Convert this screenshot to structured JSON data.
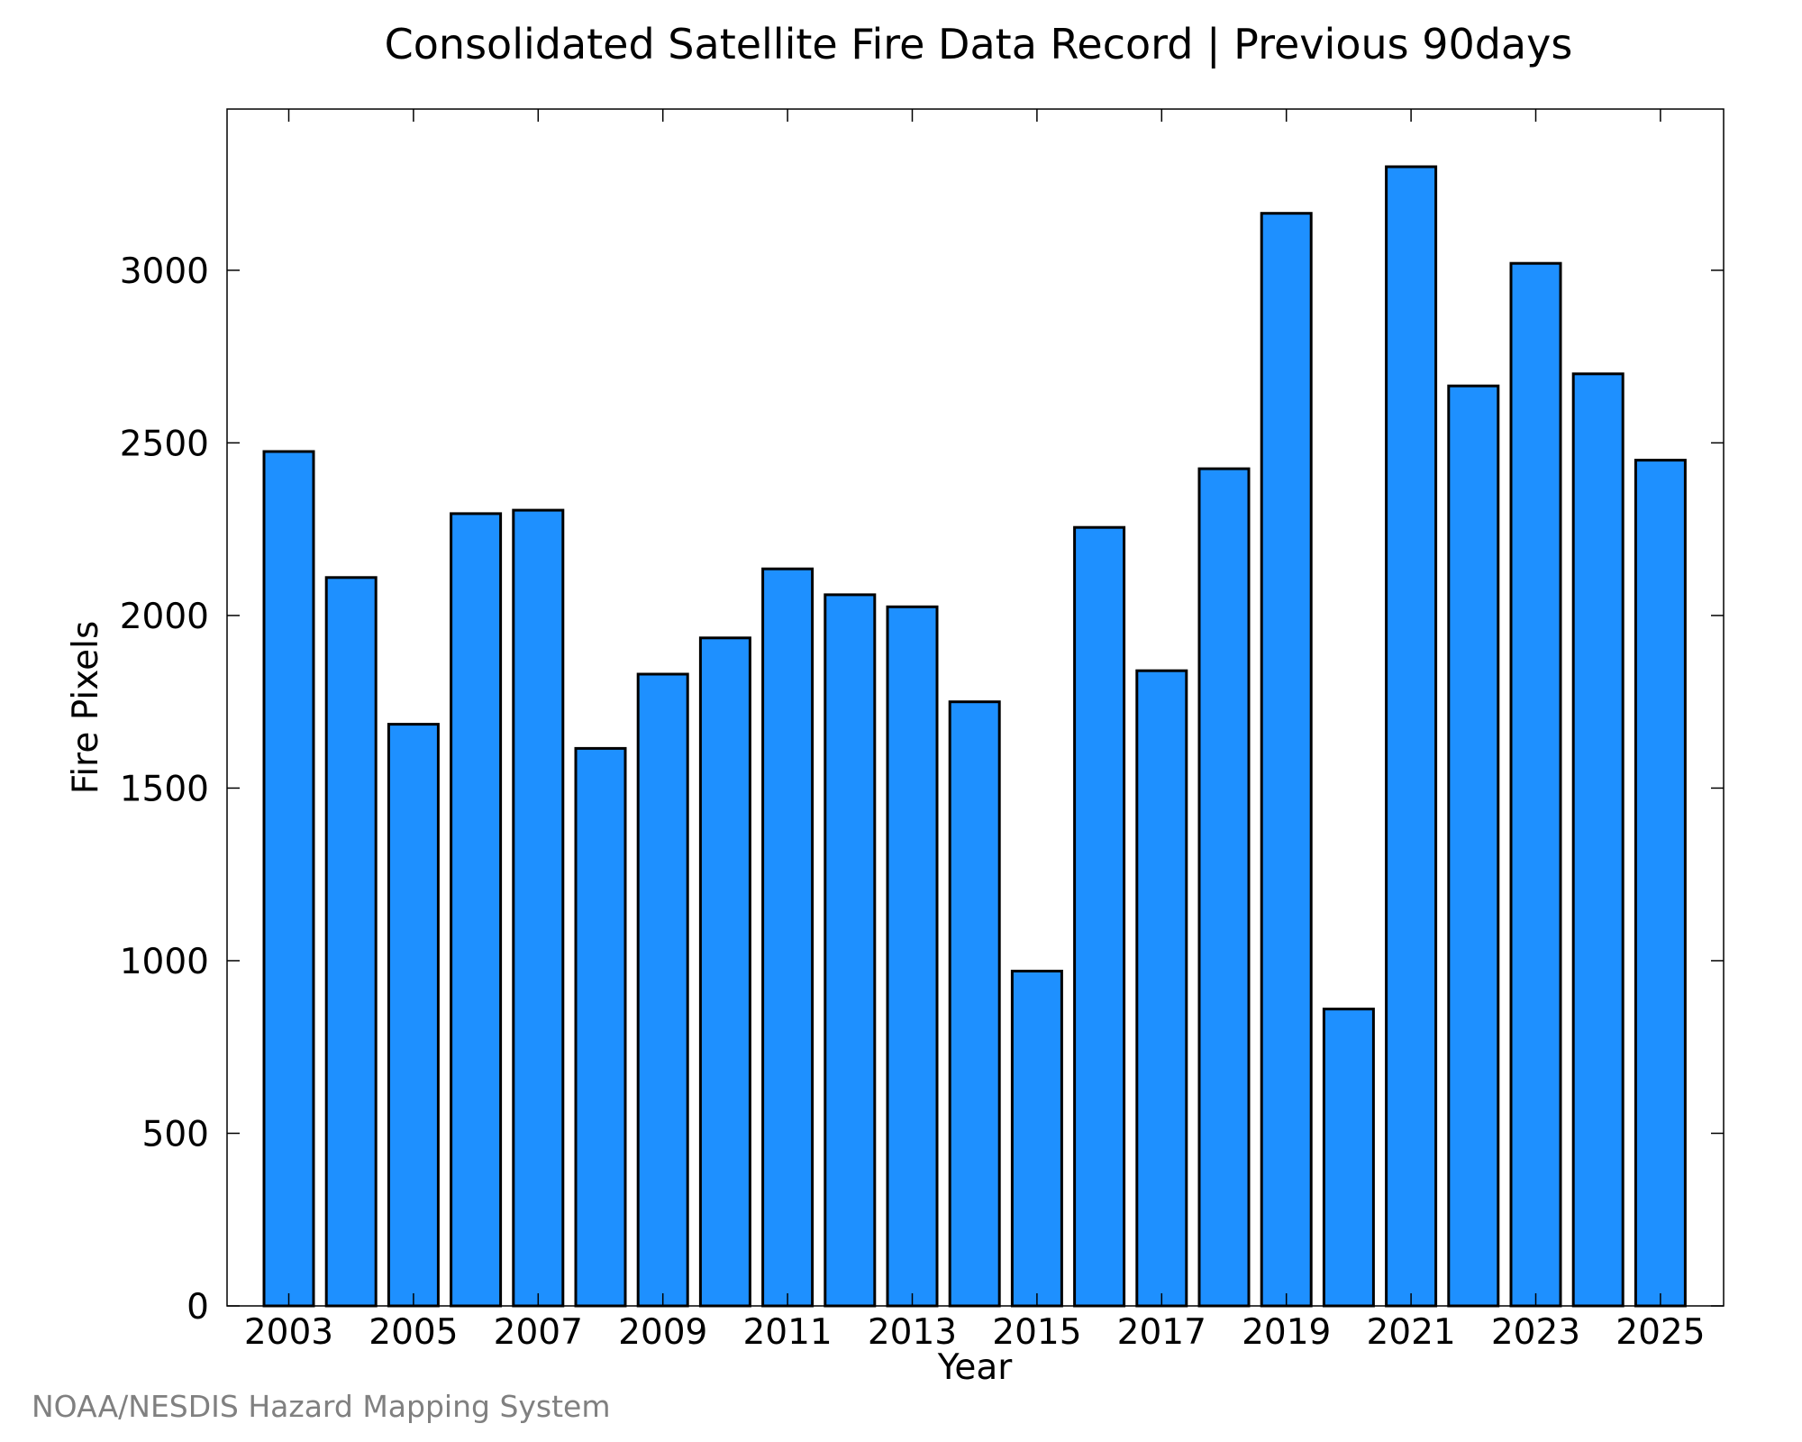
{
  "chart_data": {
    "type": "bar",
    "title": "Consolidated Satellite Fire Data Record | Previous 90days",
    "xlabel": "Year",
    "ylabel": "Fire Pixels",
    "categories": [
      "2003",
      "2004",
      "2005",
      "2006",
      "2007",
      "2008",
      "2009",
      "2010",
      "2011",
      "2012",
      "2013",
      "2014",
      "2015",
      "2016",
      "2017",
      "2018",
      "2019",
      "2020",
      "2021",
      "2022",
      "2023",
      "2024",
      "2025"
    ],
    "x_tick_labels": [
      "2003",
      "2005",
      "2007",
      "2009",
      "2011",
      "2013",
      "2015",
      "2017",
      "2019",
      "2021",
      "2023",
      "2025"
    ],
    "values": [
      2475,
      2110,
      1685,
      2295,
      2305,
      1615,
      1830,
      1935,
      2135,
      2060,
      2025,
      1750,
      970,
      2255,
      1840,
      2425,
      3165,
      860,
      3300,
      2665,
      3020,
      2700,
      2450
    ],
    "ylim": [
      0,
      3467
    ],
    "y_ticks": [
      0,
      500,
      1000,
      1500,
      2000,
      2500,
      3000
    ],
    "grid": false,
    "bar_color": "#1e90ff",
    "bar_edge_color": "#000000"
  },
  "credit": {
    "text": "NOAA/NESDIS Hazard Mapping System",
    "color": "#808080"
  }
}
